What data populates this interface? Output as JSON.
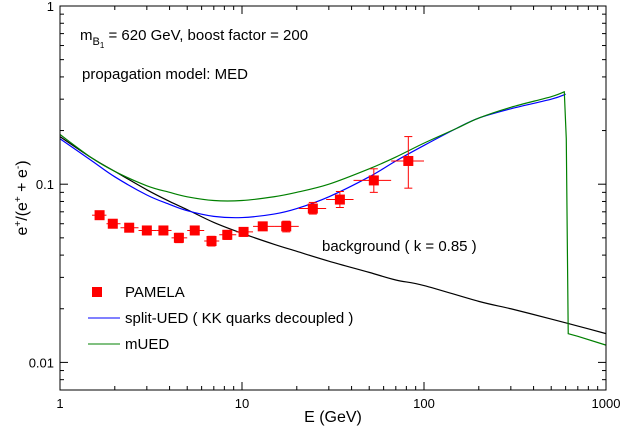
{
  "chart_data": {
    "type": "line",
    "xscale": "log",
    "yscale": "log",
    "xlim": [
      1,
      1000
    ],
    "ylim": [
      0.007,
      1
    ],
    "xlabel": "E (GeV)",
    "ylabel": {
      "base": "e",
      "sup1": "+",
      "mid": "/(e",
      "sup2": "+",
      "mid2": " + e",
      "sup3": "-",
      "end": ")"
    },
    "xticks": [
      {
        "value": 1,
        "label": "1"
      },
      {
        "value": 10,
        "label": "10"
      },
      {
        "value": 100,
        "label": "100"
      },
      {
        "value": 1000,
        "label": "1000"
      }
    ],
    "yticks": [
      {
        "value": 0.01,
        "label": "0.01"
      },
      {
        "value": 0.1,
        "label": "0.1"
      },
      {
        "value": 1,
        "label": "1"
      }
    ],
    "annotations": {
      "mass": {
        "m": "m",
        "sub": "B",
        "subsub": "1",
        "rest": " = 620 GeV, boost factor = 200"
      },
      "propagation": "propagation model: MED",
      "background": "background ( k = 0.85 )"
    },
    "legend": {
      "position": "bottom-left",
      "entries": [
        {
          "key": "pamela",
          "label": "PAMELA",
          "color": "#ff0000",
          "marker": "square"
        },
        {
          "key": "split_ued",
          "label": "split-UED ( KK quarks decoupled )",
          "color": "#0000ff",
          "marker": "line"
        },
        {
          "key": "mued",
          "label": "mUED",
          "color": "#008000",
          "marker": "line"
        }
      ]
    },
    "series": [
      {
        "name": "background ( k = 0.85 )",
        "color": "#000000",
        "x": [
          1,
          1.5,
          2,
          3,
          4,
          5,
          7,
          10,
          15,
          20,
          30,
          50,
          70,
          100,
          200,
          300,
          500,
          700,
          1000
        ],
        "y": [
          0.185,
          0.14,
          0.118,
          0.093,
          0.08,
          0.072,
          0.061,
          0.053,
          0.046,
          0.042,
          0.037,
          0.032,
          0.029,
          0.027,
          0.022,
          0.02,
          0.0175,
          0.016,
          0.0145
        ]
      },
      {
        "name": "split-UED ( KK quarks decoupled )",
        "color": "#0000ff",
        "x": [
          1,
          1.5,
          2,
          3,
          4,
          5,
          7,
          10,
          15,
          20,
          30,
          50,
          70,
          100,
          150,
          200,
          300,
          500,
          600
        ],
        "y": [
          0.18,
          0.135,
          0.11,
          0.087,
          0.077,
          0.071,
          0.066,
          0.065,
          0.068,
          0.073,
          0.085,
          0.11,
          0.135,
          0.165,
          0.205,
          0.235,
          0.265,
          0.3,
          0.32
        ]
      },
      {
        "name": "mUED",
        "color": "#008000",
        "x": [
          1,
          1.5,
          2,
          3,
          4,
          5,
          7,
          10,
          15,
          20,
          30,
          50,
          70,
          100,
          150,
          200,
          300,
          500,
          590,
          605,
          620,
          700,
          1000
        ],
        "y": [
          0.19,
          0.14,
          0.118,
          0.098,
          0.09,
          0.085,
          0.081,
          0.081,
          0.085,
          0.09,
          0.1,
          0.122,
          0.142,
          0.17,
          0.205,
          0.235,
          0.27,
          0.31,
          0.33,
          0.18,
          0.0145,
          0.014,
          0.0125
        ]
      }
    ],
    "points": {
      "name": "PAMELA",
      "color": "#ff0000",
      "data": [
        {
          "x": 1.65,
          "y": 0.067,
          "xlo": 1.5,
          "xhi": 1.8,
          "ylo": 0.064,
          "yhi": 0.07
        },
        {
          "x": 1.95,
          "y": 0.06,
          "xlo": 1.8,
          "xhi": 2.15,
          "ylo": 0.057,
          "yhi": 0.063
        },
        {
          "x": 2.4,
          "y": 0.057,
          "xlo": 2.15,
          "xhi": 2.7,
          "ylo": 0.054,
          "yhi": 0.06
        },
        {
          "x": 3.0,
          "y": 0.055,
          "xlo": 2.7,
          "xhi": 3.4,
          "ylo": 0.052,
          "yhi": 0.058
        },
        {
          "x": 3.7,
          "y": 0.055,
          "xlo": 3.4,
          "xhi": 4.1,
          "ylo": 0.052,
          "yhi": 0.058
        },
        {
          "x": 4.5,
          "y": 0.05,
          "xlo": 4.1,
          "xhi": 5.0,
          "ylo": 0.047,
          "yhi": 0.053
        },
        {
          "x": 5.5,
          "y": 0.055,
          "xlo": 5.0,
          "xhi": 6.2,
          "ylo": 0.052,
          "yhi": 0.058
        },
        {
          "x": 6.8,
          "y": 0.048,
          "xlo": 6.2,
          "xhi": 7.5,
          "ylo": 0.045,
          "yhi": 0.051
        },
        {
          "x": 8.3,
          "y": 0.052,
          "xlo": 7.5,
          "xhi": 9.3,
          "ylo": 0.049,
          "yhi": 0.055
        },
        {
          "x": 10.2,
          "y": 0.054,
          "xlo": 9.3,
          "xhi": 11.5,
          "ylo": 0.051,
          "yhi": 0.057
        },
        {
          "x": 13.0,
          "y": 0.058,
          "xlo": 11.5,
          "xhi": 15.0,
          "ylo": 0.055,
          "yhi": 0.061
        },
        {
          "x": 17.5,
          "y": 0.058,
          "xlo": 15.0,
          "xhi": 20.5,
          "ylo": 0.054,
          "yhi": 0.062
        },
        {
          "x": 24.5,
          "y": 0.073,
          "xlo": 20.5,
          "xhi": 29.0,
          "ylo": 0.068,
          "yhi": 0.079
        },
        {
          "x": 34.5,
          "y": 0.082,
          "xlo": 29.0,
          "xhi": 41.0,
          "ylo": 0.074,
          "yhi": 0.091
        },
        {
          "x": 53.0,
          "y": 0.105,
          "xlo": 41.0,
          "xhi": 66.0,
          "ylo": 0.09,
          "yhi": 0.122
        },
        {
          "x": 82.0,
          "y": 0.135,
          "xlo": 66.0,
          "xhi": 100.0,
          "ylo": 0.095,
          "yhi": 0.185
        }
      ]
    }
  }
}
